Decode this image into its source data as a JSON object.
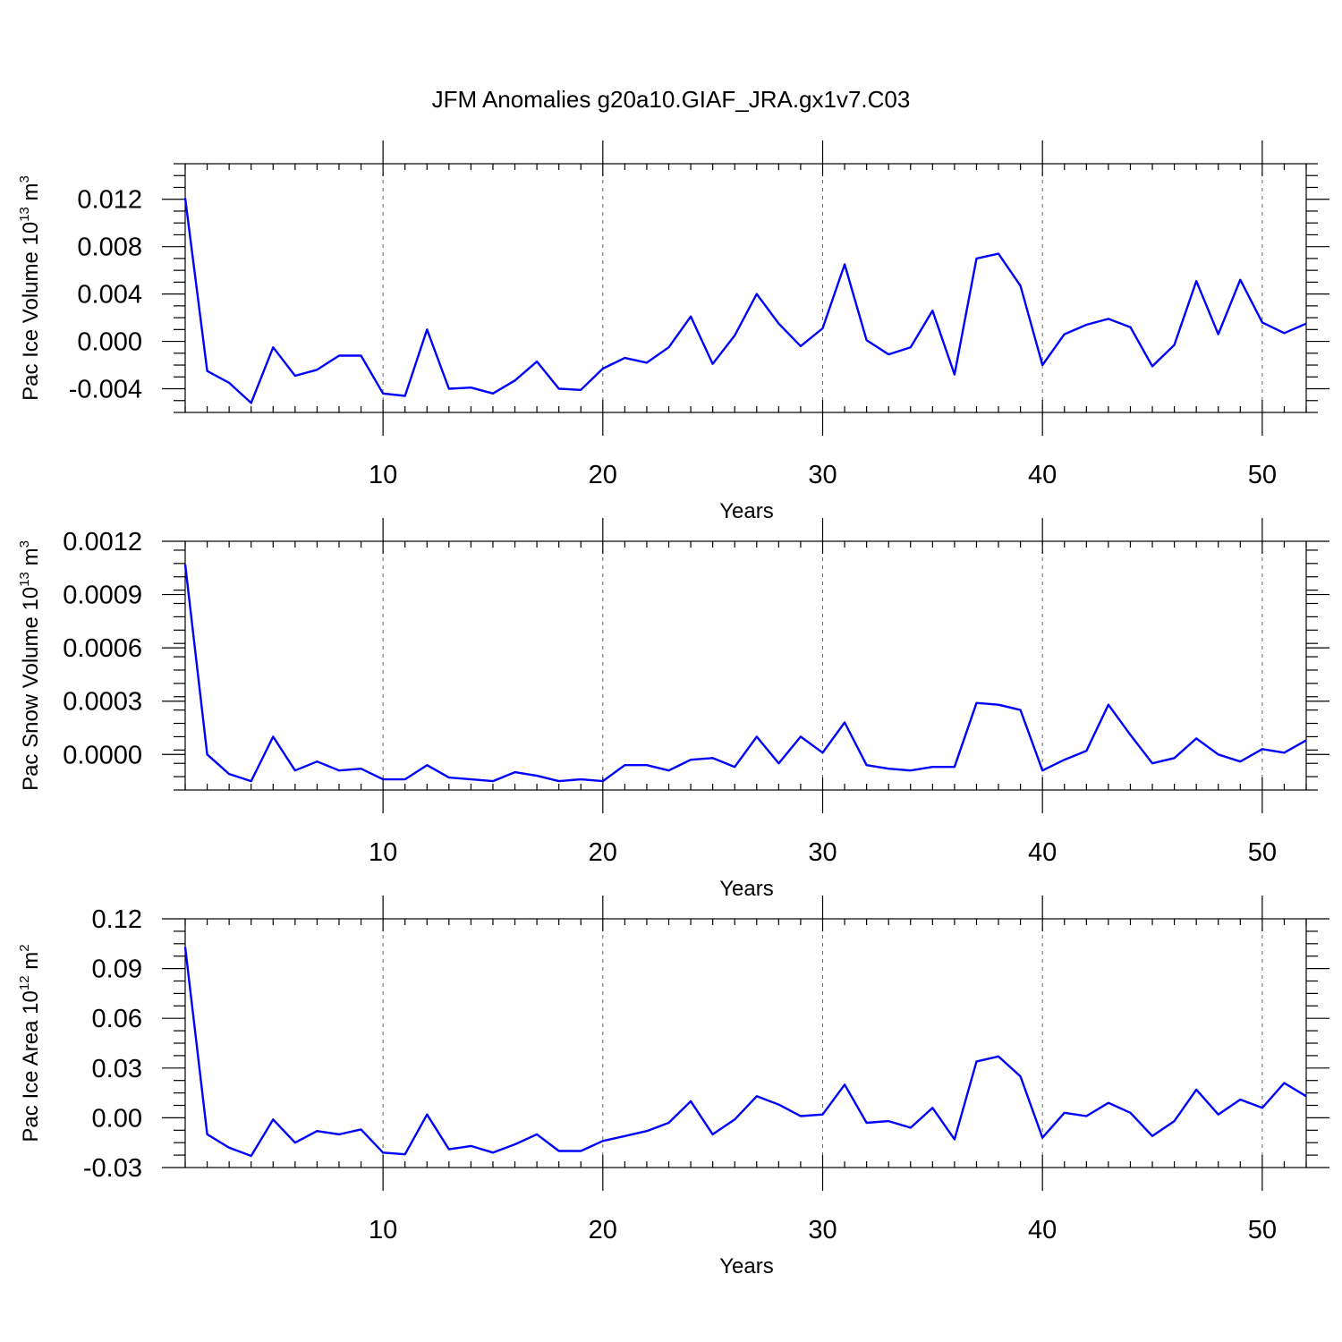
{
  "title": "JFM Anomalies g20a10.GIAF_JRA.gx1v7.C03",
  "colors": {
    "series": "#0000ff"
  },
  "chart_data": [
    {
      "type": "line",
      "ylabel": {
        "base": "Pac Ice Volume 10",
        "sup1": "13",
        "mid": " m",
        "sup2": "3"
      },
      "xlabel": "Years",
      "xlim": [
        1,
        52
      ],
      "ylim": [
        -0.006,
        0.015
      ],
      "xticks": [
        10,
        20,
        30,
        40,
        50
      ],
      "xtick_labels": [
        "10",
        "20",
        "30",
        "40",
        "50"
      ],
      "yticks": [
        -0.004,
        0.0,
        0.004,
        0.008,
        0.012
      ],
      "ytick_labels": [
        "-0.004",
        "0.000",
        "0.004",
        "0.008",
        "0.012"
      ],
      "x": [
        1,
        2,
        3,
        4,
        5,
        6,
        7,
        8,
        9,
        10,
        11,
        12,
        13,
        14,
        15,
        16,
        17,
        18,
        19,
        20,
        21,
        22,
        23,
        24,
        25,
        26,
        27,
        28,
        29,
        30,
        31,
        32,
        33,
        34,
        35,
        36,
        37,
        38,
        39,
        40,
        41,
        42,
        43,
        44,
        45,
        46,
        47,
        48,
        49,
        50,
        51,
        52
      ],
      "y": [
        0.0121,
        -0.0025,
        -0.0035,
        -0.0052,
        -0.0005,
        -0.0029,
        -0.0024,
        -0.0012,
        -0.0012,
        -0.0044,
        -0.0046,
        0.001,
        -0.004,
        -0.0039,
        -0.0044,
        -0.0033,
        -0.0017,
        -0.004,
        -0.0041,
        -0.0023,
        -0.0014,
        -0.0018,
        -0.0005,
        0.0021,
        -0.0019,
        0.0005,
        0.004,
        0.0015,
        -0.0004,
        0.0011,
        0.0065,
        0.0001,
        -0.0011,
        -0.0005,
        0.0026,
        -0.0028,
        0.007,
        0.0074,
        0.0047,
        -0.002,
        0.0006,
        0.0014,
        0.0019,
        0.0012,
        -0.0021,
        -0.0003,
        0.0051,
        0.0006,
        0.0052,
        0.0016,
        0.0007,
        0.0015
      ]
    },
    {
      "type": "line",
      "ylabel": {
        "base": "Pac Snow Volume 10",
        "sup1": "13",
        "mid": " m",
        "sup2": "3"
      },
      "xlabel": "Years",
      "xlim": [
        1,
        52
      ],
      "ylim": [
        -0.0002,
        0.0012
      ],
      "xticks": [
        10,
        20,
        30,
        40,
        50
      ],
      "xtick_labels": [
        "10",
        "20",
        "30",
        "40",
        "50"
      ],
      "yticks": [
        0.0,
        0.0003,
        0.0006,
        0.0009,
        0.0012
      ],
      "ytick_labels": [
        "0.0000",
        "0.0003",
        "0.0006",
        "0.0009",
        "0.0012"
      ],
      "x": [
        1,
        2,
        3,
        4,
        5,
        6,
        7,
        8,
        9,
        10,
        11,
        12,
        13,
        14,
        15,
        16,
        17,
        18,
        19,
        20,
        21,
        22,
        23,
        24,
        25,
        26,
        27,
        28,
        29,
        30,
        31,
        32,
        33,
        34,
        35,
        36,
        37,
        38,
        39,
        40,
        41,
        42,
        43,
        44,
        45,
        46,
        47,
        48,
        49,
        50,
        51,
        52
      ],
      "y": [
        0.00107,
        0.0,
        -0.00011,
        -0.00015,
        0.0001,
        -9e-05,
        -4e-05,
        -9e-05,
        -8e-05,
        -0.00014,
        -0.00014,
        -6e-05,
        -0.00013,
        -0.00014,
        -0.00015,
        -0.0001,
        -0.00012,
        -0.00015,
        -0.00014,
        -0.00015,
        -6e-05,
        -6e-05,
        -9e-05,
        -3e-05,
        -2e-05,
        -7e-05,
        0.0001,
        -5e-05,
        0.0001,
        1e-05,
        0.00018,
        -6e-05,
        -8e-05,
        -9e-05,
        -7e-05,
        -7e-05,
        0.00029,
        0.00028,
        0.00025,
        -9e-05,
        -3e-05,
        2e-05,
        0.00028,
        0.00011,
        -5e-05,
        -2e-05,
        9e-05,
        0.0,
        -4e-05,
        3e-05,
        1e-05,
        8e-05
      ]
    },
    {
      "type": "line",
      "ylabel": {
        "base": "Pac Ice Area 10",
        "sup1": "12",
        "mid": " m",
        "sup2": "2"
      },
      "xlabel": "Years",
      "xlim": [
        1,
        52
      ],
      "ylim": [
        -0.03,
        0.12
      ],
      "xticks": [
        10,
        20,
        30,
        40,
        50
      ],
      "xtick_labels": [
        "10",
        "20",
        "30",
        "40",
        "50"
      ],
      "yticks": [
        -0.03,
        0.0,
        0.03,
        0.06,
        0.09,
        0.12
      ],
      "ytick_labels": [
        "-0.03",
        "0.00",
        "0.03",
        "0.06",
        "0.09",
        "0.12"
      ],
      "x": [
        1,
        2,
        3,
        4,
        5,
        6,
        7,
        8,
        9,
        10,
        11,
        12,
        13,
        14,
        15,
        16,
        17,
        18,
        19,
        20,
        21,
        22,
        23,
        24,
        25,
        26,
        27,
        28,
        29,
        30,
        31,
        32,
        33,
        34,
        35,
        36,
        37,
        38,
        39,
        40,
        41,
        42,
        43,
        44,
        45,
        46,
        47,
        48,
        49,
        50,
        51,
        52
      ],
      "y": [
        0.103,
        -0.01,
        -0.018,
        -0.023,
        -0.001,
        -0.015,
        -0.008,
        -0.01,
        -0.007,
        -0.021,
        -0.022,
        0.002,
        -0.019,
        -0.017,
        -0.021,
        -0.016,
        -0.01,
        -0.02,
        -0.02,
        -0.014,
        -0.011,
        -0.008,
        -0.003,
        0.01,
        -0.01,
        -0.001,
        0.013,
        0.008,
        0.001,
        0.002,
        0.02,
        -0.003,
        -0.002,
        -0.006,
        0.006,
        -0.013,
        0.034,
        0.037,
        0.025,
        -0.012,
        0.003,
        0.001,
        0.009,
        0.003,
        -0.011,
        -0.002,
        0.017,
        0.002,
        0.011,
        0.006,
        0.021,
        0.013
      ]
    }
  ]
}
